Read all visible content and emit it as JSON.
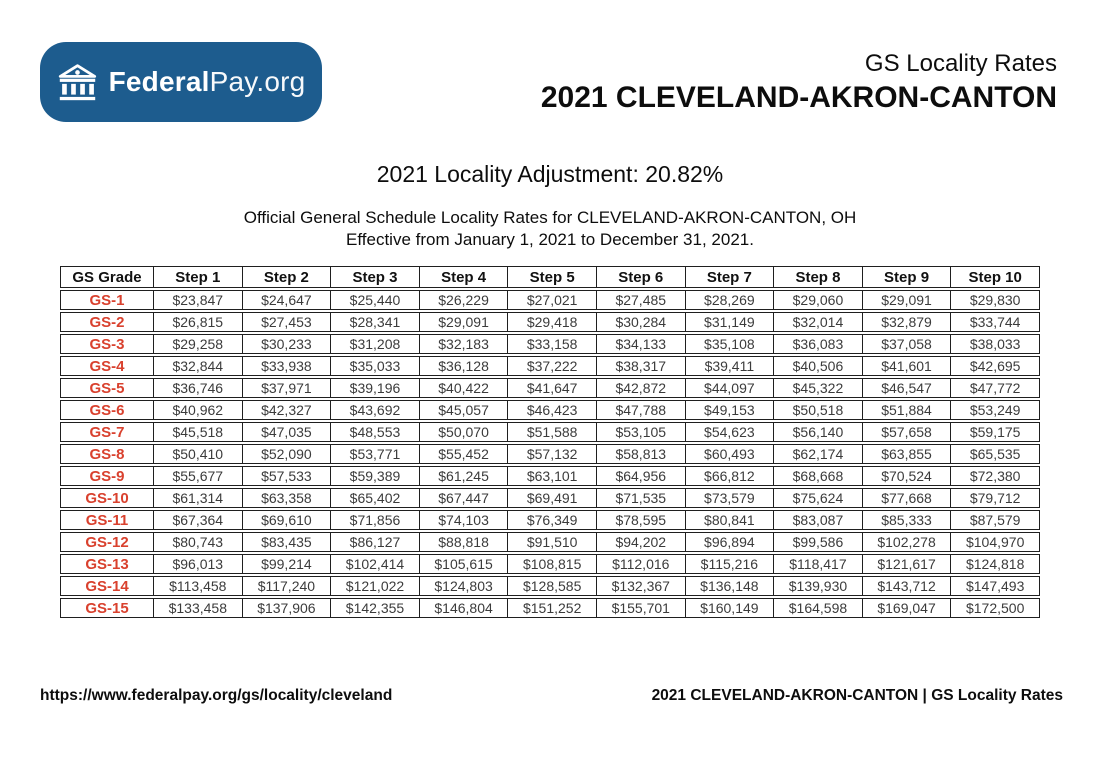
{
  "logo": {
    "brand_bold": "Federal",
    "brand_rest": "Pay.org",
    "icon": "bank-icon"
  },
  "header": {
    "supertitle": "GS Locality Rates",
    "title": "2021 CLEVELAND-AKRON-CANTON"
  },
  "intro": {
    "adjustment_label": "2021 Locality Adjustment: 20.82%",
    "description_line1": "Official General Schedule Locality Rates for CLEVELAND-AKRON-CANTON, OH",
    "description_line2": "Effective from January 1, 2021 to December 31, 2021."
  },
  "table": {
    "columns": [
      "GS Grade",
      "Step 1",
      "Step 2",
      "Step 3",
      "Step 4",
      "Step 5",
      "Step 6",
      "Step 7",
      "Step 8",
      "Step 9",
      "Step 10"
    ],
    "rows": [
      {
        "grade": "GS-1",
        "values": [
          "$23,847",
          "$24,647",
          "$25,440",
          "$26,229",
          "$27,021",
          "$27,485",
          "$28,269",
          "$29,060",
          "$29,091",
          "$29,830"
        ]
      },
      {
        "grade": "GS-2",
        "values": [
          "$26,815",
          "$27,453",
          "$28,341",
          "$29,091",
          "$29,418",
          "$30,284",
          "$31,149",
          "$32,014",
          "$32,879",
          "$33,744"
        ]
      },
      {
        "grade": "GS-3",
        "values": [
          "$29,258",
          "$30,233",
          "$31,208",
          "$32,183",
          "$33,158",
          "$34,133",
          "$35,108",
          "$36,083",
          "$37,058",
          "$38,033"
        ]
      },
      {
        "grade": "GS-4",
        "values": [
          "$32,844",
          "$33,938",
          "$35,033",
          "$36,128",
          "$37,222",
          "$38,317",
          "$39,411",
          "$40,506",
          "$41,601",
          "$42,695"
        ]
      },
      {
        "grade": "GS-5",
        "values": [
          "$36,746",
          "$37,971",
          "$39,196",
          "$40,422",
          "$41,647",
          "$42,872",
          "$44,097",
          "$45,322",
          "$46,547",
          "$47,772"
        ]
      },
      {
        "grade": "GS-6",
        "values": [
          "$40,962",
          "$42,327",
          "$43,692",
          "$45,057",
          "$46,423",
          "$47,788",
          "$49,153",
          "$50,518",
          "$51,884",
          "$53,249"
        ]
      },
      {
        "grade": "GS-7",
        "values": [
          "$45,518",
          "$47,035",
          "$48,553",
          "$50,070",
          "$51,588",
          "$53,105",
          "$54,623",
          "$56,140",
          "$57,658",
          "$59,175"
        ]
      },
      {
        "grade": "GS-8",
        "values": [
          "$50,410",
          "$52,090",
          "$53,771",
          "$55,452",
          "$57,132",
          "$58,813",
          "$60,493",
          "$62,174",
          "$63,855",
          "$65,535"
        ]
      },
      {
        "grade": "GS-9",
        "values": [
          "$55,677",
          "$57,533",
          "$59,389",
          "$61,245",
          "$63,101",
          "$64,956",
          "$66,812",
          "$68,668",
          "$70,524",
          "$72,380"
        ]
      },
      {
        "grade": "GS-10",
        "values": [
          "$61,314",
          "$63,358",
          "$65,402",
          "$67,447",
          "$69,491",
          "$71,535",
          "$73,579",
          "$75,624",
          "$77,668",
          "$79,712"
        ]
      },
      {
        "grade": "GS-11",
        "values": [
          "$67,364",
          "$69,610",
          "$71,856",
          "$74,103",
          "$76,349",
          "$78,595",
          "$80,841",
          "$83,087",
          "$85,333",
          "$87,579"
        ]
      },
      {
        "grade": "GS-12",
        "values": [
          "$80,743",
          "$83,435",
          "$86,127",
          "$88,818",
          "$91,510",
          "$94,202",
          "$96,894",
          "$99,586",
          "$102,278",
          "$104,970"
        ]
      },
      {
        "grade": "GS-13",
        "values": [
          "$96,013",
          "$99,214",
          "$102,414",
          "$105,615",
          "$108,815",
          "$112,016",
          "$115,216",
          "$118,417",
          "$121,617",
          "$124,818"
        ]
      },
      {
        "grade": "GS-14",
        "values": [
          "$113,458",
          "$117,240",
          "$121,022",
          "$124,803",
          "$128,585",
          "$132,367",
          "$136,148",
          "$139,930",
          "$143,712",
          "$147,493"
        ]
      },
      {
        "grade": "GS-15",
        "values": [
          "$133,458",
          "$137,906",
          "$142,355",
          "$146,804",
          "$151,252",
          "$155,701",
          "$160,149",
          "$164,598",
          "$169,047",
          "$172,500"
        ]
      }
    ]
  },
  "footer": {
    "url": "https://www.federalpay.org/gs/locality/cleveland",
    "right_text": "2021 CLEVELAND-AKRON-CANTON | GS Locality Rates"
  },
  "colors": {
    "brand_blue": "#1d5c8e",
    "grade_red": "#d9412e",
    "border_dark": "#1f1f1f"
  }
}
